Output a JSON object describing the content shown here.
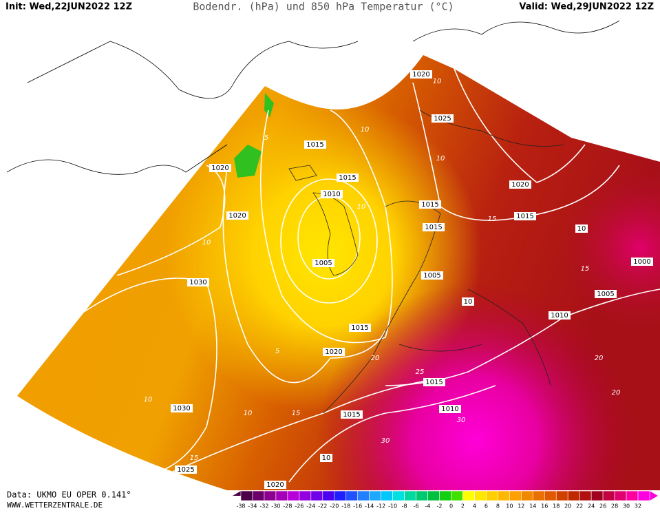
{
  "header": {
    "init": "Init: Wed,22JUN2022 12Z",
    "title": "Bodendr. (hPa) und 850 hPa Temperatur (°C)",
    "valid": "Valid: Wed,29JUN2022 12Z"
  },
  "isobar_labels": [
    "1020",
    "1025",
    "1015",
    "1020",
    "1015",
    "1010",
    "1020",
    "1015",
    "1015",
    "1020",
    "1015",
    "10",
    "1005",
    "1030",
    "1005",
    "10",
    "1005",
    "1010",
    "1000",
    "1015",
    "1020",
    "1015",
    "1010",
    "1015",
    "1030",
    "10",
    "1025",
    "1020"
  ],
  "temperature_labels": [
    "5",
    "10",
    "10",
    "10",
    "10",
    "5",
    "10",
    "15",
    "15",
    "10",
    "15",
    "20",
    "20",
    "25",
    "30",
    "30",
    "15",
    "20",
    "10"
  ],
  "colorbar": {
    "labels": [
      "-38",
      "-34",
      "-32",
      "-30",
      "-28",
      "-26",
      "-24",
      "-22",
      "-20",
      "-18",
      "-16",
      "-14",
      "-12",
      "-10",
      "-8",
      "-6",
      "-4",
      "-2",
      "0",
      "2",
      "4",
      "6",
      "8",
      "10",
      "12",
      "14",
      "16",
      "18",
      "20",
      "22",
      "24",
      "26",
      "28",
      "30",
      "32"
    ],
    "colors": [
      "#4b0048",
      "#6a006a",
      "#8c0090",
      "#a400b8",
      "#b800d8",
      "#9400e0",
      "#7000e8",
      "#4c00f0",
      "#2020ff",
      "#2050ff",
      "#2080ff",
      "#20a8ff",
      "#00c8ff",
      "#00e0e0",
      "#00d8a0",
      "#00c870",
      "#00c040",
      "#10d010",
      "#40e000",
      "#ffff00",
      "#ffe800",
      "#ffd000",
      "#ffb800",
      "#ffa000",
      "#f08800",
      "#e87000",
      "#e05800",
      "#d04000",
      "#c02800",
      "#b01010",
      "#a00020",
      "#c00040",
      "#e00070",
      "#ff00a0",
      "#ff00e0"
    ]
  },
  "footer": {
    "data": "Data: UKMO EU OPER 0.141°",
    "site": "WWW.WETTERZENTRALE.DE"
  }
}
